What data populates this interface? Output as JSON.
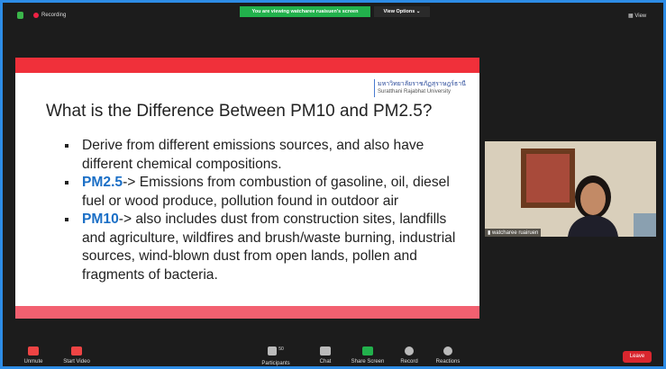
{
  "top_bar": {
    "recording": "Recording",
    "banner": "You are viewing watcharee ruaisuen's screen",
    "view_options": "View Options",
    "view": "View"
  },
  "slide": {
    "university_thai": "มหาวิทยาลัยราชภัฏสุราษฎร์ธานี",
    "university_en": "Suratthani Rajabhat University",
    "title": "What is the Difference Between PM10 and PM2.5?",
    "bullets": [
      {
        "lead": null,
        "text": "Derive from different emissions sources, and also have different chemical compositions."
      },
      {
        "lead": "PM2.5",
        "text": "-> Emissions from combustion of gasoline, oil, diesel fuel or wood produce, pollution found in outdoor air"
      },
      {
        "lead": "PM10",
        "text": "-> also includes dust from construction sites, landfills and agriculture, wildfires and brush/waste burning, industrial sources, wind-blown dust from open lands, pollen and fragments of bacteria."
      }
    ]
  },
  "video": {
    "name": "watcharee ruairuen"
  },
  "toolbar": {
    "unmute": "Unmute",
    "start_video": "Start Video",
    "participants": "Participants",
    "participant_count": 50,
    "chat": "Chat",
    "share_screen": "Share Screen",
    "record": "Record",
    "reactions": "Reactions",
    "leave": "Leave"
  }
}
